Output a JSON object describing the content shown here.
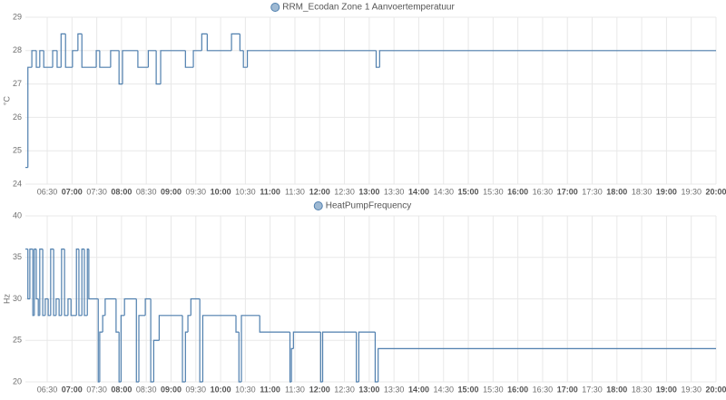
{
  "chart_data": [
    {
      "type": "line",
      "step": "after",
      "ylabel": "°C",
      "x": [
        6.06,
        6.11,
        6.19,
        6.28,
        6.35,
        6.43,
        6.61,
        6.7,
        6.78,
        6.87,
        7.01,
        7.12,
        7.2,
        7.49,
        7.56,
        7.78,
        7.95,
        8.02,
        8.33,
        8.54,
        8.7,
        8.79,
        9.29,
        9.45,
        9.62,
        9.73,
        10.22,
        10.39,
        10.46,
        10.54,
        13.14,
        13.21,
        20.0
      ],
      "series": [
        {
          "name": "RRM_Ecodan Zone 1 Aanvoertemperatuur",
          "color": "#4f7fae",
          "values": [
            24.5,
            27.5,
            28,
            27.5,
            28,
            27.5,
            28,
            27.5,
            28.5,
            27.5,
            28,
            28.5,
            27.5,
            28,
            27.5,
            28,
            27,
            28,
            27.5,
            28,
            27,
            28,
            27.5,
            28,
            28.5,
            28,
            28.5,
            28,
            27.5,
            28,
            27.5,
            28,
            28
          ]
        }
      ],
      "xlim": [
        6.06,
        20.0
      ],
      "ylim": [
        24,
        29
      ],
      "yticks": [
        24,
        25,
        26,
        27,
        28,
        29
      ],
      "xticks": [
        {
          "value": 6.5,
          "label": "06:30"
        },
        {
          "value": 7,
          "label": "07:00"
        },
        {
          "value": 7.5,
          "label": "07:30"
        },
        {
          "value": 8,
          "label": "08:00"
        },
        {
          "value": 8.5,
          "label": "08:30"
        },
        {
          "value": 9,
          "label": "09:00"
        },
        {
          "value": 9.5,
          "label": "09:30"
        },
        {
          "value": 10,
          "label": "10:00"
        },
        {
          "value": 10.5,
          "label": "10:30"
        },
        {
          "value": 11,
          "label": "11:00"
        },
        {
          "value": 11.5,
          "label": "11:30"
        },
        {
          "value": 12,
          "label": "12:00"
        },
        {
          "value": 12.5,
          "label": "12:30"
        },
        {
          "value": 13,
          "label": "13:00"
        },
        {
          "value": 13.5,
          "label": "13:30"
        },
        {
          "value": 14,
          "label": "14:00"
        },
        {
          "value": 14.5,
          "label": "14:30"
        },
        {
          "value": 15,
          "label": "15:00"
        },
        {
          "value": 15.5,
          "label": "15:30"
        },
        {
          "value": 16,
          "label": "16:00"
        },
        {
          "value": 16.5,
          "label": "16:30"
        },
        {
          "value": 17,
          "label": "17:00"
        },
        {
          "value": 17.5,
          "label": "17:30"
        },
        {
          "value": 18,
          "label": "18:00"
        },
        {
          "value": 18.5,
          "label": "18:30"
        },
        {
          "value": 19,
          "label": "19:00"
        },
        {
          "value": 19.5,
          "label": "19:30"
        },
        {
          "value": 20,
          "label": "20:00"
        }
      ],
      "grid": true
    },
    {
      "type": "line",
      "step": "after",
      "ylabel": "Hz",
      "x": [
        6.06,
        6.11,
        6.15,
        6.21,
        6.24,
        6.28,
        6.32,
        6.35,
        6.41,
        6.46,
        6.52,
        6.57,
        6.63,
        6.68,
        6.74,
        6.79,
        6.85,
        6.92,
        6.98,
        7.09,
        7.14,
        7.2,
        7.25,
        7.31,
        7.34,
        7.53,
        7.56,
        7.62,
        7.67,
        7.89,
        7.95,
        7.99,
        8.06,
        8.3,
        8.35,
        8.48,
        8.59,
        8.65,
        8.76,
        9.23,
        9.29,
        9.34,
        9.4,
        9.58,
        9.64,
        10.31,
        10.37,
        10.42,
        10.79,
        11.4,
        11.43,
        11.47,
        12.02,
        12.06,
        12.74,
        12.79,
        13.12,
        13.18,
        20.0
      ],
      "series": [
        {
          "name": "HeatPumpFrequency",
          "color": "#4f7fae",
          "values": [
            36,
            30,
            36,
            28,
            36,
            30,
            28,
            36,
            28,
            30,
            28,
            36,
            28,
            30,
            28,
            36,
            28,
            30,
            28,
            36,
            28,
            36,
            28,
            36,
            30,
            20,
            26,
            28,
            30,
            26,
            20,
            28,
            30,
            20,
            28,
            30,
            20,
            25,
            28,
            20,
            26,
            28,
            30,
            20,
            28,
            26,
            20,
            28,
            26,
            20,
            24,
            26,
            20,
            26,
            20,
            26,
            20,
            24,
            24
          ]
        }
      ],
      "xlim": [
        6.06,
        20.0
      ],
      "ylim": [
        20,
        40
      ],
      "yticks": [
        20,
        25,
        30,
        35,
        40
      ],
      "xticks": [
        {
          "value": 6.5,
          "label": "06:30"
        },
        {
          "value": 7,
          "label": "07:00"
        },
        {
          "value": 7.5,
          "label": "07:30"
        },
        {
          "value": 8,
          "label": "08:00"
        },
        {
          "value": 8.5,
          "label": "08:30"
        },
        {
          "value": 9,
          "label": "09:00"
        },
        {
          "value": 9.5,
          "label": "09:30"
        },
        {
          "value": 10,
          "label": "10:00"
        },
        {
          "value": 10.5,
          "label": "10:30"
        },
        {
          "value": 11,
          "label": "11:00"
        },
        {
          "value": 11.5,
          "label": "11:30"
        },
        {
          "value": 12,
          "label": "12:00"
        },
        {
          "value": 12.5,
          "label": "12:30"
        },
        {
          "value": 13,
          "label": "13:00"
        },
        {
          "value": 13.5,
          "label": "13:30"
        },
        {
          "value": 14,
          "label": "14:00"
        },
        {
          "value": 14.5,
          "label": "14:30"
        },
        {
          "value": 15,
          "label": "15:00"
        },
        {
          "value": 15.5,
          "label": "15:30"
        },
        {
          "value": 16,
          "label": "16:00"
        },
        {
          "value": 16.5,
          "label": "16:30"
        },
        {
          "value": 17,
          "label": "17:00"
        },
        {
          "value": 17.5,
          "label": "17:30"
        },
        {
          "value": 18,
          "label": "18:00"
        },
        {
          "value": 18.5,
          "label": "18:30"
        },
        {
          "value": 19,
          "label": "19:00"
        },
        {
          "value": 19.5,
          "label": "19:30"
        },
        {
          "value": 20,
          "label": "20:00"
        }
      ],
      "grid": true
    }
  ]
}
